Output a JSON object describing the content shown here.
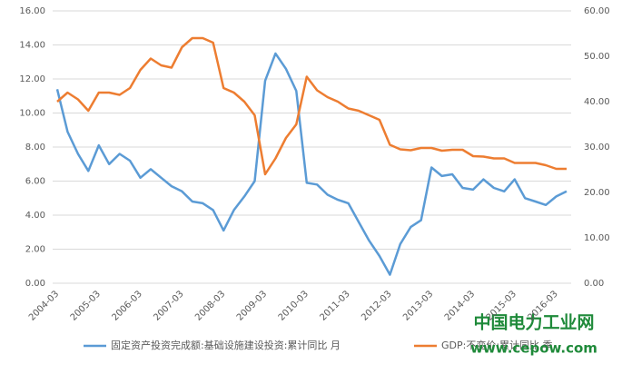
{
  "chart_data": {
    "type": "line",
    "categories": [
      "2004-03",
      null,
      null,
      null,
      "2005-03",
      null,
      null,
      null,
      "2006-03",
      null,
      null,
      null,
      "2007-03",
      null,
      null,
      null,
      "2008-03",
      null,
      null,
      null,
      "2009-03",
      null,
      null,
      null,
      "2010-03",
      null,
      null,
      null,
      "2011-03",
      null,
      null,
      null,
      "2012-03",
      null,
      null,
      null,
      "2013-03",
      null,
      null,
      null,
      "2014-03",
      null,
      null,
      null,
      "2015-03",
      null,
      null,
      null,
      "2016-03",
      null
    ],
    "series": [
      {
        "name": "固定资产投资完成额:基础设施建设投资:累计同比 月",
        "color": "#5b9bd5",
        "values": [
          11.4,
          8.9,
          7.6,
          6.6,
          8.1,
          7.0,
          7.6,
          7.2,
          6.2,
          6.7,
          6.2,
          5.7,
          5.4,
          4.8,
          4.7,
          4.3,
          3.1,
          4.3,
          5.1,
          6.0,
          11.9,
          13.5,
          12.6,
          11.3,
          5.9,
          5.8,
          5.2,
          4.9,
          4.7,
          3.6,
          2.5,
          1.6,
          0.5,
          2.3,
          3.3,
          3.7,
          6.8,
          6.3,
          6.4,
          5.6,
          5.5,
          6.1,
          5.6,
          5.4,
          6.1,
          5.0,
          4.8,
          4.6,
          5.1,
          5.4
        ]
      },
      {
        "name": "GDP:不变价:累计同比 季",
        "color": "#ed7d31",
        "axis": "y2",
        "values": [
          40,
          42,
          40.5,
          38,
          42,
          42,
          41.5,
          43,
          47,
          49.5,
          48,
          47.5,
          52,
          54,
          54,
          53,
          43,
          42,
          40,
          37,
          24,
          27.5,
          32,
          35,
          45.5,
          42.5,
          41,
          40,
          38.5,
          38,
          37,
          36,
          30.5,
          29.5,
          29.3,
          29.8,
          29.8,
          29.2,
          29.4,
          29.4,
          28,
          27.9,
          27.5,
          27.5,
          26.5,
          26.5,
          26.5,
          26,
          25.2,
          25.2
        ]
      }
    ],
    "ylim": [
      0,
      16
    ],
    "yticks": [
      {
        "value": 0,
        "label": "0.00"
      },
      {
        "value": 2,
        "label": "2.00"
      },
      {
        "value": 4,
        "label": "4.00"
      },
      {
        "value": 6,
        "label": "6.00"
      },
      {
        "value": 8,
        "label": "8.00"
      },
      {
        "value": 10,
        "label": "10.00"
      },
      {
        "value": 12,
        "label": "12.00"
      },
      {
        "value": 14,
        "label": "14.00"
      },
      {
        "value": 16,
        "label": "16.00"
      }
    ],
    "y2lim": [
      0,
      60
    ],
    "y2ticks": [
      {
        "value": 0,
        "label": "0.00"
      },
      {
        "value": 10,
        "label": "10.00"
      },
      {
        "value": 20,
        "label": "20.00"
      },
      {
        "value": 30,
        "label": "30.00"
      },
      {
        "value": 40,
        "label": "40.00"
      },
      {
        "value": 50,
        "label": "50.00"
      },
      {
        "value": 60,
        "label": "60.00"
      }
    ],
    "grid": true,
    "annotations": [
      "中国电力工业网",
      "www.cepow.com"
    ]
  }
}
